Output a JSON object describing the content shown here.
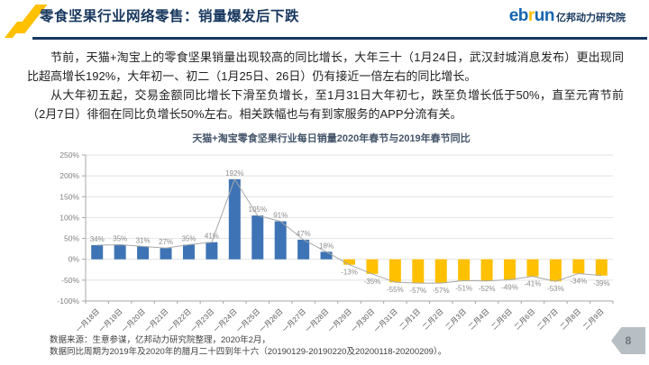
{
  "header": {
    "title": "零食坚果行业网络零售：销量爆发后下跌",
    "logo": {
      "part1": "eb",
      "part2": "r",
      "part3": "un",
      "suffix": "亿邦动力研究院"
    }
  },
  "body": {
    "paragraph1": "节前，天猫+淘宝上的零食坚果销量出现较高的同比增长，大年三十（1月24日，武汉封城消息发布）更出现同比超高增长192%，大年初一、初二（1月25日、26日）仍有接近一倍左右的同比增长。",
    "paragraph2": "从大年初五起，交易金额同比增长下滑至负增长，至1月31日大年初七，跌至负增长低于50%，直至元宵节前（2月7日）徘徊在同比负增长50%左右。相关跌幅也与有到家服务的APP分流有关。"
  },
  "chart_data": {
    "type": "bar",
    "title": "天猫+淘宝零食坚果行业每日销量2020年春节与2019年春节同比",
    "categories": [
      "一月18日",
      "一月19日",
      "一月20日",
      "一月21日",
      "一月22日",
      "一月23日",
      "一月24日",
      "一月25日",
      "一月26日",
      "一月27日",
      "一月28日",
      "一月29日",
      "一月30日",
      "一月31日",
      "二月1日",
      "二月2日",
      "二月3日",
      "二月4日",
      "二月5日",
      "二月6日",
      "二月7日",
      "二月8日",
      "二月9日"
    ],
    "values": [
      34,
      35,
      31,
      27,
      35,
      41,
      192,
      105,
      91,
      47,
      18,
      -13,
      -35,
      -55,
      -57,
      -57,
      -51,
      -52,
      -49,
      -41,
      -53,
      -34,
      -39
    ],
    "value_suffix": "%",
    "xlabel": "",
    "ylabel": "",
    "ylim": [
      -100,
      250
    ],
    "ytick_step": 50,
    "ytick_labels": [
      "250%",
      "200%",
      "150%",
      "100%",
      "50%",
      "0%",
      "-50%",
      "-100%"
    ],
    "grid": true,
    "legend": "none",
    "overlay_line": true,
    "positive_color": "#3E74B5",
    "negative_color": "#FFC000",
    "line_color": "#A8A8A8",
    "value_label_color": "#8C8C8C",
    "axis_color": "#A6A6A6",
    "grid_color": "#E2E2E2",
    "ytick_label_color": "#808080",
    "xtick_label_color": "#595959"
  },
  "footer": {
    "line1": "数据来源：生意参谋，亿邦动力研究院整理，2020年2月，",
    "line2": "数据同比周期为2019年及2020年的腊月二十四到年十六（20190129-20190220及20200118-20200209）。",
    "page_number": "8"
  }
}
